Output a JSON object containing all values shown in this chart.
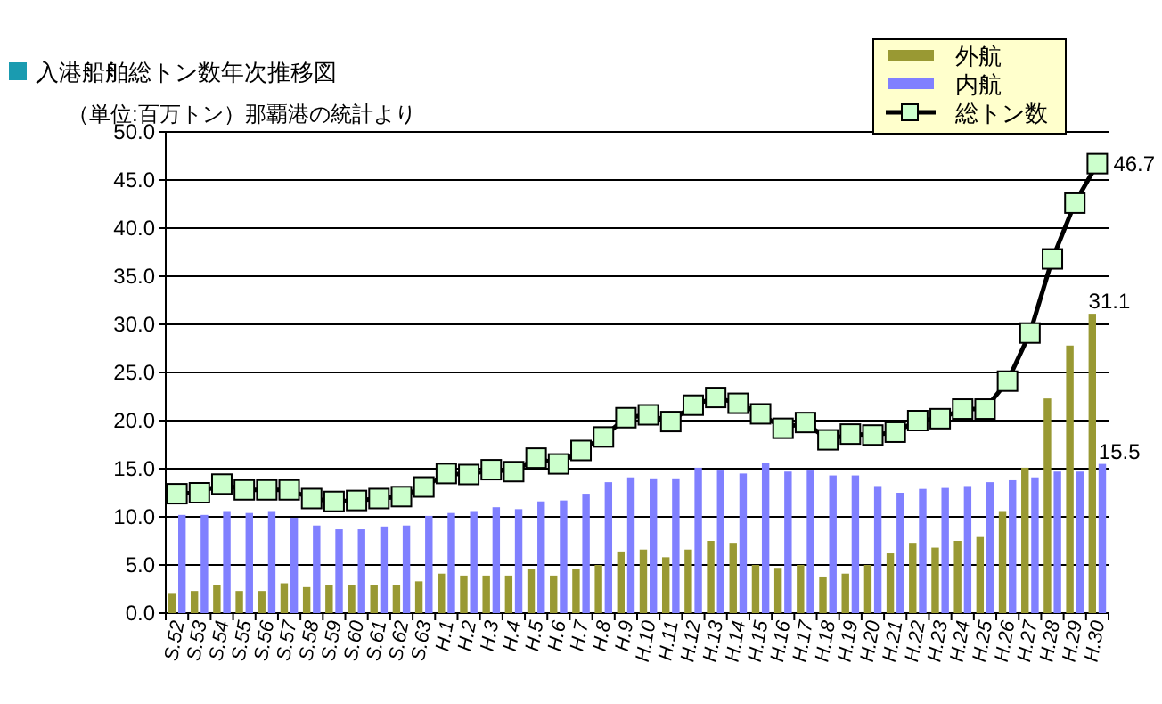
{
  "chart_data": {
    "type": "bar",
    "title": "入港船舶総トン数年次推移図",
    "subtitle": "（単位:百万トン）那覇港の統計より",
    "categories": [
      "S.52",
      "S.53",
      "S.54",
      "S.55",
      "S.56",
      "S.57",
      "S.58",
      "S.59",
      "S.60",
      "S.61",
      "S.62",
      "S.63",
      "H.1",
      "H.2",
      "H.3",
      "H.4",
      "H.5",
      "H.6",
      "H.7",
      "H.8",
      "H.9",
      "H.10",
      "H.11",
      "H.12",
      "H.13",
      "H.14",
      "H.15",
      "H.16",
      "H.17",
      "H.18",
      "H.19",
      "H.20",
      "H.21",
      "H.22",
      "H.23",
      "H.24",
      "H.25",
      "H.26",
      "H.27",
      "H.28",
      "H.29",
      "H.30"
    ],
    "series": [
      {
        "name": "外航",
        "color": "#999933",
        "values": [
          2.0,
          2.3,
          2.9,
          2.3,
          2.3,
          3.1,
          2.7,
          2.9,
          2.9,
          2.9,
          2.9,
          3.3,
          4.1,
          3.9,
          3.9,
          3.9,
          4.6,
          3.9,
          4.6,
          5.0,
          6.4,
          6.6,
          5.8,
          6.6,
          7.5,
          7.3,
          5.0,
          4.7,
          5.0,
          3.8,
          4.1,
          5.0,
          6.2,
          7.3,
          6.8,
          7.5,
          7.9,
          10.6,
          15.1,
          22.3,
          27.8,
          31.1
        ],
        "value_labels": [
          null,
          null,
          null,
          null,
          null,
          null,
          null,
          null,
          null,
          null,
          null,
          null,
          null,
          null,
          null,
          null,
          null,
          null,
          null,
          null,
          null,
          null,
          null,
          null,
          null,
          null,
          null,
          null,
          null,
          null,
          null,
          null,
          null,
          null,
          null,
          null,
          null,
          null,
          null,
          null,
          null,
          "31.1"
        ]
      },
      {
        "name": "内航",
        "color": "#8080ff",
        "values": [
          10.2,
          10.2,
          10.6,
          10.4,
          10.6,
          9.9,
          9.1,
          8.7,
          8.7,
          9.0,
          9.1,
          10.1,
          10.4,
          10.6,
          11.0,
          10.8,
          11.6,
          11.7,
          12.4,
          13.6,
          14.1,
          14.0,
          14.0,
          15.1,
          14.9,
          14.5,
          15.6,
          14.7,
          14.9,
          14.3,
          14.3,
          13.2,
          12.5,
          12.9,
          13.0,
          13.2,
          13.6,
          13.8,
          14.1,
          14.7,
          14.7,
          15.5
        ],
        "value_labels": [
          null,
          null,
          null,
          null,
          null,
          null,
          null,
          null,
          null,
          null,
          null,
          null,
          null,
          null,
          null,
          null,
          null,
          null,
          null,
          null,
          null,
          null,
          null,
          null,
          null,
          null,
          null,
          null,
          null,
          null,
          null,
          null,
          null,
          null,
          null,
          null,
          null,
          null,
          null,
          null,
          null,
          "15.5"
        ]
      },
      {
        "name": "総トン数",
        "type": "line",
        "color": "#000000",
        "values": [
          12.4,
          12.5,
          13.4,
          12.8,
          12.8,
          12.8,
          11.9,
          11.6,
          11.7,
          11.9,
          12.1,
          13.1,
          14.5,
          14.4,
          14.9,
          14.7,
          16.1,
          15.5,
          16.9,
          18.3,
          20.3,
          20.6,
          19.9,
          21.6,
          22.4,
          21.8,
          20.7,
          19.2,
          19.8,
          18.0,
          18.6,
          18.5,
          18.8,
          20.0,
          20.2,
          21.2,
          21.2,
          24.1,
          29.1,
          36.8,
          42.6,
          46.7
        ],
        "value_labels": [
          null,
          null,
          null,
          null,
          null,
          null,
          null,
          null,
          null,
          null,
          null,
          null,
          null,
          null,
          null,
          null,
          null,
          null,
          null,
          null,
          null,
          null,
          null,
          null,
          null,
          null,
          null,
          null,
          null,
          null,
          null,
          null,
          null,
          null,
          null,
          null,
          null,
          null,
          null,
          null,
          null,
          "46.7"
        ]
      }
    ],
    "ylim": [
      0,
      50
    ],
    "yticks": [
      {
        "value": 0,
        "label": "0.0"
      },
      {
        "value": 5,
        "label": "5.0"
      },
      {
        "value": 10,
        "label": "10.0"
      },
      {
        "value": 15,
        "label": "15.0"
      },
      {
        "value": 20,
        "label": "20.0"
      },
      {
        "value": 25,
        "label": "25.0"
      },
      {
        "value": 30,
        "label": "30.0"
      },
      {
        "value": 35,
        "label": "35.0"
      },
      {
        "value": 40,
        "label": "40.0"
      },
      {
        "value": 45,
        "label": "45.0"
      },
      {
        "value": 50,
        "label": "50.0"
      }
    ],
    "grid": "y",
    "legend": "top right",
    "marker": "square"
  }
}
